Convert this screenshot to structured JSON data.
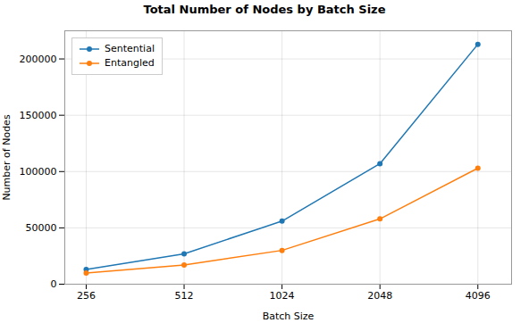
{
  "chart_data": {
    "type": "line",
    "title": "Total Number of Nodes by Batch Size",
    "xlabel": "Batch Size",
    "ylabel": "Number of Nodes",
    "x": [
      256,
      512,
      1024,
      2048,
      4096
    ],
    "series": [
      {
        "name": "Sentential",
        "color": "#1f77b4",
        "marker": "circle",
        "values": [
          13000,
          27000,
          56000,
          107000,
          213000
        ]
      },
      {
        "name": "Entangled",
        "color": "#ff7f0e",
        "marker": "circle",
        "values": [
          10000,
          17000,
          30000,
          58000,
          103000
        ]
      }
    ],
    "log": "x",
    "xlim": [
      220,
      5200
    ],
    "xticks": [
      256,
      512,
      1024,
      2048,
      4096
    ],
    "ylim": [
      0,
      225000
    ],
    "yticks": [
      0,
      50000,
      100000,
      150000,
      200000
    ],
    "grid": true,
    "legend": "upper left"
  }
}
